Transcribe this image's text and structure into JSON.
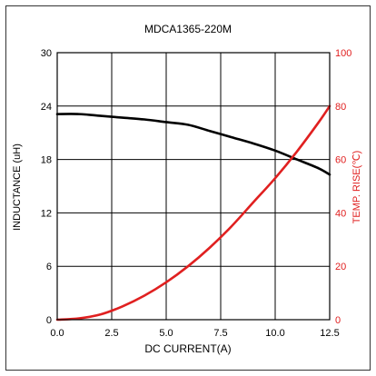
{
  "chart_data": {
    "type": "line",
    "title": "MDCA1365-220M",
    "xlabel": "DC CURRENT(A)",
    "ylabel_left": "INDUCTANCE (uH)",
    "ylabel_right": "TEMP. RISE(℃)",
    "xlim": [
      0,
      12.5
    ],
    "ylim_left": [
      0,
      30
    ],
    "ylim_right": [
      0,
      100
    ],
    "x_ticks": [
      "0.0",
      "2.5",
      "5.0",
      "7.5",
      "10.0",
      "12.5"
    ],
    "y_ticks_left": [
      "0",
      "6",
      "12",
      "18",
      "24",
      "30"
    ],
    "y_ticks_right": [
      "0",
      "20",
      "40",
      "60",
      "80",
      "100"
    ],
    "grid": true,
    "colors": {
      "inductance": "#000000",
      "temp_rise": "#e02020",
      "grid": "#000000"
    },
    "series": [
      {
        "axis": "left",
        "x": [
          0,
          1,
          2,
          3,
          4,
          5,
          6,
          7,
          8,
          9,
          10,
          11,
          12,
          12.5
        ],
        "values": [
          23.1,
          23.1,
          22.9,
          22.7,
          22.5,
          22.2,
          21.9,
          21.2,
          20.5,
          19.8,
          19.0,
          18.0,
          17.0,
          16.3
        ]
      },
      {
        "axis": "right",
        "x": [
          0,
          1,
          2,
          3,
          4,
          5,
          6,
          7,
          8,
          9,
          10,
          11,
          12,
          12.5
        ],
        "values": [
          0,
          0.5,
          2,
          5,
          9,
          14,
          20,
          27,
          35,
          44,
          53,
          63,
          74,
          80
        ]
      }
    ]
  }
}
